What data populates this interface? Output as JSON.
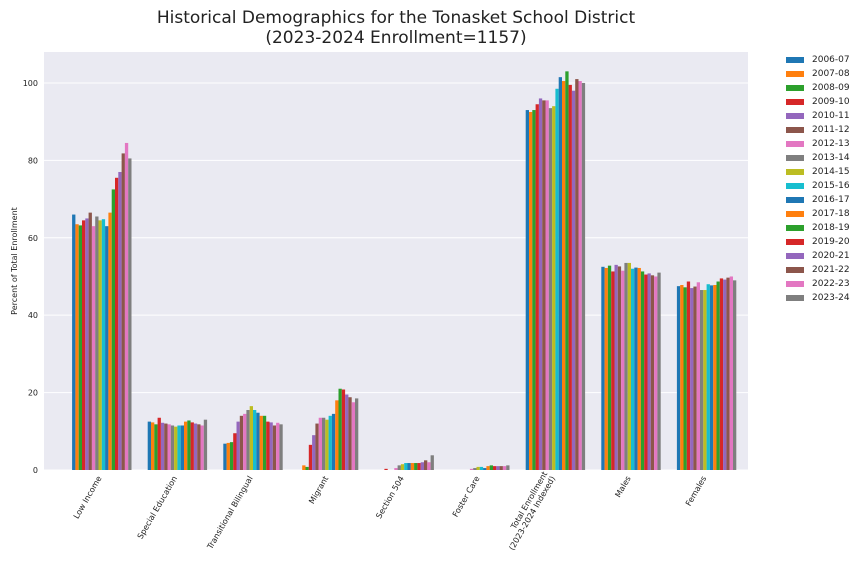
{
  "chart_data": {
    "type": "bar",
    "title": "Historical Demographics for the Tonasket School District",
    "subtitle": "(2023-2024 Enrollment=1157)",
    "xlabel": "",
    "ylabel": "Percent of Total Enrollment",
    "ylim": [
      0,
      108
    ],
    "yticks": [
      0,
      20,
      40,
      60,
      80,
      100
    ],
    "grid": true,
    "legend_position": "outside-right",
    "categories": [
      "Low Income",
      "Special Education",
      "Transitional Bilingual",
      "Migrant",
      "Section 504",
      "Foster Care",
      "Total Enrollment\n(2023-2024 Indexed)",
      "Males",
      "Females"
    ],
    "series": [
      {
        "name": "2006-07",
        "color": "#1f77b4",
        "values": [
          66.0,
          12.5,
          6.8,
          0.0,
          0.0,
          0.0,
          93.0,
          52.5,
          47.5
        ]
      },
      {
        "name": "2007-08",
        "color": "#ff7f0e",
        "values": [
          63.5,
          12.3,
          7.0,
          1.2,
          0.0,
          0.0,
          92.5,
          52.2,
          47.8
        ]
      },
      {
        "name": "2008-09",
        "color": "#2ca02c",
        "values": [
          63.2,
          11.8,
          7.2,
          0.8,
          0.0,
          0.0,
          93.0,
          52.8,
          47.2
        ]
      },
      {
        "name": "2009-10",
        "color": "#d62728",
        "values": [
          64.5,
          13.5,
          9.5,
          6.5,
          0.3,
          0.0,
          94.5,
          51.3,
          48.7
        ]
      },
      {
        "name": "2010-11",
        "color": "#9467bd",
        "values": [
          65.0,
          12.2,
          12.5,
          9.0,
          0.0,
          0.0,
          96.0,
          53.0,
          47.0
        ]
      },
      {
        "name": "2011-12",
        "color": "#8c564b",
        "values": [
          66.5,
          12.0,
          14.0,
          12.0,
          0.0,
          0.0,
          95.5,
          52.6,
          47.4
        ]
      },
      {
        "name": "2012-13",
        "color": "#e377c2",
        "values": [
          63.0,
          11.8,
          14.5,
          13.5,
          0.5,
          0.3,
          95.5,
          51.5,
          48.5
        ]
      },
      {
        "name": "2013-14",
        "color": "#7f7f7f",
        "values": [
          65.5,
          11.5,
          15.5,
          13.5,
          1.2,
          0.5,
          93.5,
          53.5,
          46.5
        ]
      },
      {
        "name": "2014-15",
        "color": "#bcbd22",
        "values": [
          64.5,
          11.2,
          16.5,
          13.0,
          1.5,
          0.8,
          94.0,
          53.5,
          46.5
        ]
      },
      {
        "name": "2015-16",
        "color": "#17becf",
        "values": [
          64.8,
          11.5,
          15.5,
          14.0,
          1.8,
          0.8,
          98.5,
          52.0,
          48.0
        ]
      },
      {
        "name": "2016-17",
        "color": "#1f77b4",
        "values": [
          63.0,
          11.5,
          14.8,
          14.5,
          1.8,
          0.5,
          101.5,
          52.3,
          47.7
        ]
      },
      {
        "name": "2017-18",
        "color": "#ff7f0e",
        "values": [
          66.5,
          12.5,
          14.0,
          18.0,
          1.8,
          1.0,
          100.5,
          52.2,
          47.8
        ]
      },
      {
        "name": "2018-19",
        "color": "#2ca02c",
        "values": [
          72.5,
          12.8,
          14.0,
          21.0,
          1.8,
          1.2,
          103.0,
          51.3,
          48.7
        ]
      },
      {
        "name": "2019-20",
        "color": "#d62728",
        "values": [
          75.5,
          12.3,
          12.5,
          20.8,
          1.8,
          1.0,
          99.5,
          50.5,
          49.5
        ]
      },
      {
        "name": "2020-21",
        "color": "#9467bd",
        "values": [
          77.0,
          12.0,
          12.3,
          19.5,
          2.0,
          1.0,
          98.0,
          50.8,
          49.2
        ]
      },
      {
        "name": "2021-22",
        "color": "#8c564b",
        "values": [
          81.8,
          11.8,
          11.5,
          18.8,
          2.5,
          1.0,
          101.0,
          50.3,
          49.7
        ]
      },
      {
        "name": "2022-23",
        "color": "#e377c2",
        "values": [
          84.5,
          11.5,
          12.2,
          17.5,
          2.0,
          1.0,
          100.5,
          50.0,
          50.0
        ]
      },
      {
        "name": "2023-24",
        "color": "#7f7f7f",
        "values": [
          80.5,
          13.0,
          11.8,
          18.5,
          3.8,
          1.2,
          100.0,
          51.0,
          49.0
        ]
      }
    ]
  }
}
